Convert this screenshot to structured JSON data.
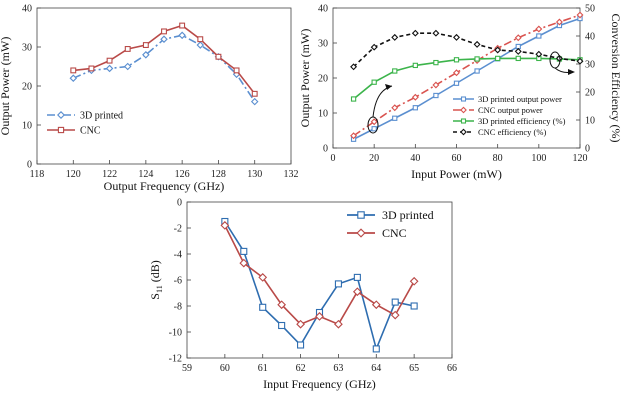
{
  "chart_data": [
    {
      "type": "line",
      "xlabel": "Output Frequency (GHz)",
      "ylabel": "Output Power (mW)",
      "xlim": [
        118,
        132
      ],
      "ylim": [
        0,
        40
      ],
      "xticks": [
        118,
        120,
        122,
        124,
        126,
        128,
        130,
        132
      ],
      "yticks": [
        0,
        10,
        20,
        30,
        40
      ],
      "legend": "lower-left",
      "series": [
        {
          "name": "3D printed",
          "color": "#5b8fd0",
          "marker": "diamond",
          "dash": "dashdot",
          "x": [
            120,
            121,
            122,
            123,
            124,
            125,
            126,
            127,
            128,
            129,
            130
          ],
          "y": [
            22,
            24,
            24.5,
            25,
            28,
            32,
            33,
            30.5,
            27.5,
            23,
            16
          ]
        },
        {
          "name": "CNC",
          "color": "#b94a48",
          "marker": "square",
          "dash": "solid",
          "x": [
            120,
            121,
            122,
            123,
            124,
            125,
            126,
            127,
            128,
            129,
            130
          ],
          "y": [
            24,
            24.5,
            26.5,
            29.5,
            30.5,
            34,
            35.5,
            32,
            27.5,
            24,
            18
          ]
        }
      ]
    },
    {
      "type": "line",
      "xlabel": "Input Power (mW)",
      "ylabel": "Output Power (mW)",
      "ylabel_right": "Conversion Efficiency (%)",
      "xlim": [
        0,
        120
      ],
      "ylim": [
        0,
        40
      ],
      "ylim_right": [
        0,
        50
      ],
      "xticks": [
        0,
        20,
        40,
        60,
        80,
        100,
        120
      ],
      "yticks": [
        0,
        10,
        20,
        30,
        40
      ],
      "yticks_right": [
        0,
        10,
        20,
        30,
        40,
        50
      ],
      "legend": "lower-right",
      "series": [
        {
          "name": "3D printed output power",
          "axis": "left",
          "color": "#5b8fd0",
          "marker": "square-open",
          "dash": "solid",
          "x": [
            10,
            20,
            30,
            40,
            50,
            60,
            70,
            80,
            90,
            100,
            110,
            120
          ],
          "y": [
            2.5,
            5.5,
            8.5,
            11.5,
            15,
            18.5,
            22,
            25.5,
            29,
            32,
            35,
            37
          ]
        },
        {
          "name": "CNC output power",
          "axis": "left",
          "color": "#d9534f",
          "marker": "diamond-open",
          "dash": "dashdot",
          "x": [
            10,
            20,
            30,
            40,
            50,
            60,
            70,
            80,
            90,
            100,
            110,
            120
          ],
          "y": [
            3.5,
            7.5,
            11.5,
            14.5,
            18,
            21.5,
            25,
            28.5,
            31.5,
            34,
            36,
            38
          ]
        },
        {
          "name": "3D printed efficiency (%)",
          "axis": "right",
          "color": "#3cb44b",
          "marker": "square-open",
          "dash": "solid",
          "x": [
            10,
            20,
            30,
            40,
            50,
            60,
            70,
            80,
            90,
            100,
            110,
            120
          ],
          "y": [
            17.5,
            23.5,
            27.5,
            29.5,
            30.5,
            31.5,
            31.8,
            32,
            32,
            32,
            31.8,
            31.5
          ]
        },
        {
          "name": "CNC efficiency (%)",
          "axis": "right",
          "color": "#111111",
          "marker": "diamond-open",
          "dash": "dashed",
          "x": [
            10,
            20,
            30,
            40,
            50,
            60,
            70,
            80,
            90,
            100,
            110,
            120
          ],
          "y": [
            29,
            36,
            39.5,
            41,
            41,
            39.5,
            37,
            35,
            34.5,
            33.5,
            32,
            31
          ]
        }
      ]
    },
    {
      "type": "line",
      "xlabel": "Input Frequency (GHz)",
      "ylabel": "S11 (dB)",
      "xlim": [
        59,
        66
      ],
      "ylim": [
        -12,
        0
      ],
      "xticks": [
        59,
        60,
        61,
        62,
        63,
        64,
        65,
        66
      ],
      "yticks": [
        -12,
        -10,
        -8,
        -6,
        -4,
        -2,
        0
      ],
      "legend": "top-right",
      "series": [
        {
          "name": "3D printed",
          "color": "#2e6db0",
          "marker": "square-open",
          "x": [
            60,
            60.5,
            61,
            61.5,
            62,
            62.5,
            63,
            63.5,
            64,
            64.5,
            65
          ],
          "y": [
            -1.5,
            -3.8,
            -8.1,
            -9.5,
            -11.0,
            -8.5,
            -6.3,
            -5.8,
            -11.3,
            -7.7,
            -8.0
          ]
        },
        {
          "name": "CNC",
          "color": "#b94a48",
          "marker": "diamond-open",
          "x": [
            60,
            60.5,
            61,
            61.5,
            62,
            62.5,
            63,
            63.5,
            64,
            64.5,
            65
          ],
          "y": [
            -1.8,
            -4.7,
            -5.8,
            -7.9,
            -9.4,
            -8.8,
            -9.4,
            -6.9,
            -7.9,
            -8.7,
            -6.1
          ]
        }
      ]
    }
  ]
}
